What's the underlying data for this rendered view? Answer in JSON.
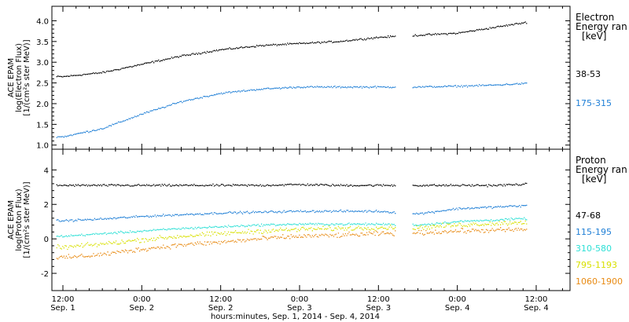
{
  "chart_data": [
    {
      "type": "scatter",
      "panel": "electron",
      "ylabel": [
        "ACE EPAM",
        "log(Electron Flux)",
        "[1/(cm²s ster MeV)]"
      ],
      "ylim": [
        0.9,
        4.35
      ],
      "yticks": [
        1.0,
        1.5,
        2.0,
        2.5,
        3.0,
        3.5,
        4.0
      ],
      "ytick_labels": [
        "1.0",
        "1.5",
        "2.0",
        "2.5",
        "3.0",
        "3.5",
        "4.0"
      ],
      "legend_title": [
        "Electron",
        "Energy ran",
        "[keV]"
      ],
      "series": [
        {
          "name": "38-53",
          "color": "#000000",
          "x": [
            "Sep 1 12:00",
            "Sep 1 18:00",
            "Sep 2 00:00",
            "Sep 2 06:00",
            "Sep 2 12:00",
            "Sep 2 18:00",
            "Sep 3 00:00",
            "Sep 3 06:00",
            "Sep 3 12:00",
            "Sep 3 18:00",
            "Sep 4 00:00",
            "Sep 4 06:00",
            "Sep 4 12:00"
          ],
          "y": [
            2.65,
            2.75,
            2.95,
            3.15,
            3.3,
            3.4,
            3.45,
            3.5,
            3.6,
            3.65,
            3.7,
            3.85,
            4.0
          ]
        },
        {
          "name": "175-315",
          "color": "#1f7fd6",
          "x": [
            "Sep 1 12:00",
            "Sep 1 18:00",
            "Sep 2 00:00",
            "Sep 2 06:00",
            "Sep 2 12:00",
            "Sep 2 18:00",
            "Sep 3 00:00",
            "Sep 3 06:00",
            "Sep 3 12:00",
            "Sep 3 18:00",
            "Sep 4 00:00",
            "Sep 4 06:00",
            "Sep 4 12:00"
          ],
          "y": [
            1.2,
            1.4,
            1.75,
            2.05,
            2.25,
            2.35,
            2.4,
            2.4,
            2.4,
            2.4,
            2.42,
            2.45,
            2.5
          ]
        }
      ]
    },
    {
      "type": "scatter",
      "panel": "proton",
      "ylabel": [
        "ACE EPAM",
        "log(Proton Flux)",
        "[1/(cm²s ster MeV)]"
      ],
      "ylim": [
        -3.0,
        5.2
      ],
      "yticks": [
        -2,
        0,
        2,
        4
      ],
      "ytick_labels": [
        "-2",
        "0",
        "2",
        "4"
      ],
      "legend_title": [
        "Proton",
        "Energy ran",
        "[keV]"
      ],
      "series": [
        {
          "name": "47-68",
          "color": "#000000",
          "x": [
            "Sep 1 12:00",
            "Sep 1 18:00",
            "Sep 2 00:00",
            "Sep 2 06:00",
            "Sep 2 12:00",
            "Sep 2 18:00",
            "Sep 3 00:00",
            "Sep 3 06:00",
            "Sep 3 12:00",
            "Sep 3 18:00",
            "Sep 4 00:00",
            "Sep 4 06:00",
            "Sep 4 12:00"
          ],
          "y": [
            3.1,
            3.1,
            3.1,
            3.1,
            3.1,
            3.1,
            3.15,
            3.1,
            3.1,
            3.1,
            3.1,
            3.1,
            3.2
          ]
        },
        {
          "name": "115-195",
          "color": "#1f7fd6",
          "x": [
            "Sep 1 12:00",
            "Sep 1 18:00",
            "Sep 2 00:00",
            "Sep 2 06:00",
            "Sep 2 12:00",
            "Sep 2 18:00",
            "Sep 3 00:00",
            "Sep 3 06:00",
            "Sep 3 12:00",
            "Sep 3 18:00",
            "Sep 4 00:00",
            "Sep 4 06:00",
            "Sep 4 12:00"
          ],
          "y": [
            1.05,
            1.15,
            1.3,
            1.4,
            1.5,
            1.55,
            1.6,
            1.6,
            1.6,
            1.45,
            1.75,
            1.85,
            1.95
          ]
        },
        {
          "name": "310-580",
          "color": "#2fe0d6",
          "x": [
            "Sep 1 12:00",
            "Sep 1 18:00",
            "Sep 2 00:00",
            "Sep 2 06:00",
            "Sep 2 12:00",
            "Sep 2 18:00",
            "Sep 3 00:00",
            "Sep 3 06:00",
            "Sep 3 12:00",
            "Sep 3 18:00",
            "Sep 4 00:00",
            "Sep 4 06:00",
            "Sep 4 12:00"
          ],
          "y": [
            0.15,
            0.3,
            0.45,
            0.6,
            0.7,
            0.8,
            0.85,
            0.85,
            0.85,
            0.8,
            1.0,
            1.1,
            1.2
          ]
        },
        {
          "name": "795-1193",
          "color": "#d8e000",
          "x": [
            "Sep 1 12:00",
            "Sep 1 18:00",
            "Sep 2 00:00",
            "Sep 2 06:00",
            "Sep 2 12:00",
            "Sep 2 18:00",
            "Sep 3 00:00",
            "Sep 3 06:00",
            "Sep 3 12:00",
            "Sep 3 18:00",
            "Sep 4 00:00",
            "Sep 4 06:00",
            "Sep 4 12:00"
          ],
          "y": [
            -0.5,
            -0.3,
            -0.05,
            0.15,
            0.3,
            0.45,
            0.55,
            0.6,
            0.65,
            0.65,
            0.8,
            0.9,
            1.0
          ]
        },
        {
          "name": "1060-1900",
          "color": "#e88a12",
          "x": [
            "Sep 1 12:00",
            "Sep 1 18:00",
            "Sep 2 00:00",
            "Sep 2 06:00",
            "Sep 2 12:00",
            "Sep 2 18:00",
            "Sep 3 00:00",
            "Sep 3 06:00",
            "Sep 3 12:00",
            "Sep 3 18:00",
            "Sep 4 00:00",
            "Sep 4 06:00",
            "Sep 4 12:00"
          ],
          "y": [
            -1.1,
            -0.9,
            -0.6,
            -0.35,
            -0.2,
            0.0,
            0.15,
            0.2,
            0.3,
            0.35,
            0.45,
            0.5,
            0.55
          ]
        }
      ]
    }
  ],
  "x_axis": {
    "ticks": [
      {
        "time": "12:00",
        "day": "Sep. 1"
      },
      {
        "time": "0:00",
        "day": "Sep. 2"
      },
      {
        "time": "12:00",
        "day": "Sep. 2"
      },
      {
        "time": "0:00",
        "day": "Sep. 3"
      },
      {
        "time": "12:00",
        "day": "Sep. 3"
      },
      {
        "time": "0:00",
        "day": "Sep. 4"
      },
      {
        "time": "12:00",
        "day": "Sep. 4"
      }
    ],
    "label": "hours:minutes, Sep.  1, 2014 - Sep.  4, 2014"
  }
}
